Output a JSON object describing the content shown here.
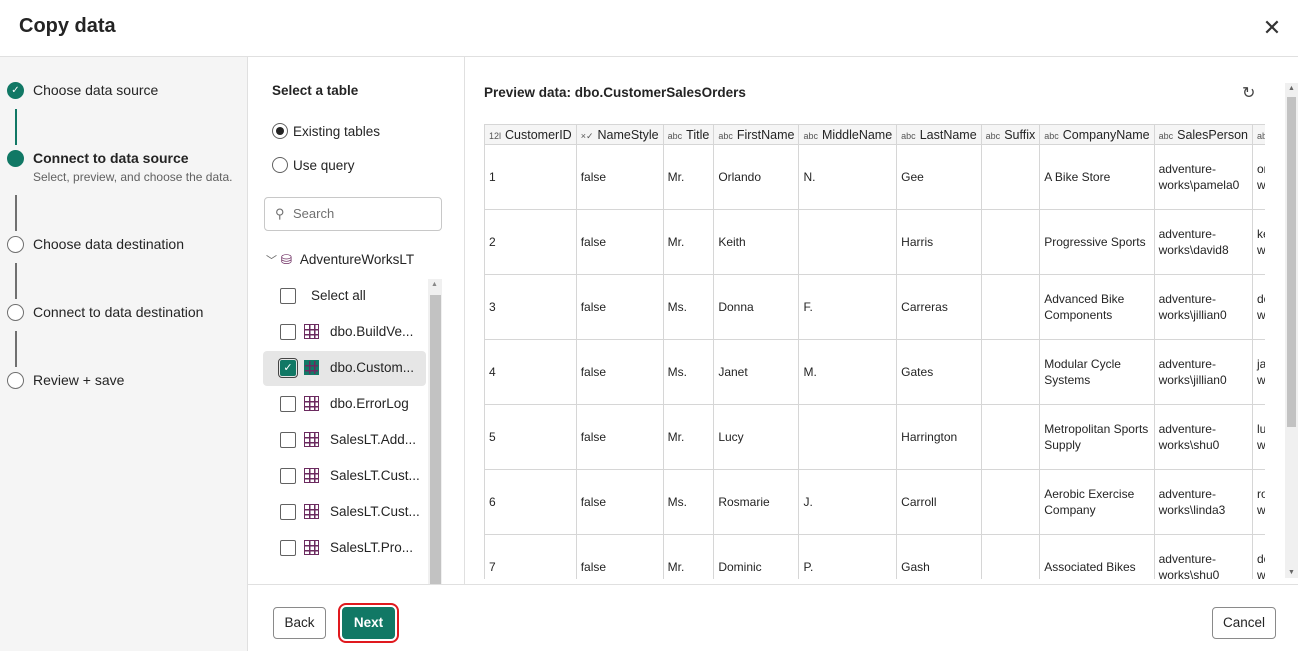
{
  "dialog": {
    "title": "Copy data",
    "close_icon": "close-icon"
  },
  "accent_color": "#117865",
  "steps": [
    {
      "label": "Choose data source",
      "status": "done"
    },
    {
      "label": "Connect to data source",
      "status": "current",
      "subtitle": "Select, preview, and choose the data."
    },
    {
      "label": "Choose data destination",
      "status": "pending"
    },
    {
      "label": "Connect to data destination",
      "status": "pending"
    },
    {
      "label": "Review + save",
      "status": "pending"
    }
  ],
  "select_table": {
    "heading": "Select a table",
    "options": [
      "Existing tables",
      "Use query"
    ],
    "selected_option": "Existing tables",
    "search_placeholder": "Search",
    "database": "AdventureWorksLT",
    "select_all": "Select all",
    "tables": [
      {
        "name": "dbo.BuildVe...",
        "checked": false
      },
      {
        "name": "dbo.Custom...",
        "checked": true
      },
      {
        "name": "dbo.ErrorLog",
        "checked": false
      },
      {
        "name": "SalesLT.Add...",
        "checked": false
      },
      {
        "name": "SalesLT.Cust...",
        "checked": false
      },
      {
        "name": "SalesLT.Cust...",
        "checked": false
      },
      {
        "name": "SalesLT.Pro...",
        "checked": false
      }
    ]
  },
  "preview": {
    "title": "Preview data: dbo.CustomerSalesOrders",
    "columns": [
      {
        "type": "12l",
        "name": "CustomerID"
      },
      {
        "type": "×✓",
        "name": "NameStyle"
      },
      {
        "type": "abc",
        "name": "Title"
      },
      {
        "type": "abc",
        "name": "FirstName"
      },
      {
        "type": "abc",
        "name": "MiddleName"
      },
      {
        "type": "abc",
        "name": "LastName"
      },
      {
        "type": "abc",
        "name": "Suffix"
      },
      {
        "type": "abc",
        "name": "CompanyName"
      },
      {
        "type": "abc",
        "name": "SalesPerson"
      },
      {
        "type": "ab",
        "name": ""
      }
    ],
    "rows": [
      [
        "1",
        "false",
        "Mr.",
        "Orlando",
        "N.",
        "Gee",
        "",
        "A Bike Store",
        "adventure-works\\pamela0",
        "or w"
      ],
      [
        "2",
        "false",
        "Mr.",
        "Keith",
        "",
        "Harris",
        "",
        "Progressive Sports",
        "adventure-works\\david8",
        "ke w"
      ],
      [
        "3",
        "false",
        "Ms.",
        "Donna",
        "F.",
        "Carreras",
        "",
        "Advanced Bike Components",
        "adventure-works\\jillian0",
        "do w"
      ],
      [
        "4",
        "false",
        "Ms.",
        "Janet",
        "M.",
        "Gates",
        "",
        "Modular Cycle Systems",
        "adventure-works\\jillian0",
        "ja w"
      ],
      [
        "5",
        "false",
        "Mr.",
        "Lucy",
        "",
        "Harrington",
        "",
        "Metropolitan Sports Supply",
        "adventure-works\\shu0",
        "lu w"
      ],
      [
        "6",
        "false",
        "Ms.",
        "Rosmarie",
        "J.",
        "Carroll",
        "",
        "Aerobic Exercise Company",
        "adventure-works\\linda3",
        "ro w"
      ],
      [
        "7",
        "false",
        "Mr.",
        "Dominic",
        "P.",
        "Gash",
        "",
        "Associated Bikes",
        "adventure-works\\shu0",
        "do w"
      ]
    ]
  },
  "footer": {
    "back": "Back",
    "next": "Next",
    "cancel": "Cancel"
  }
}
